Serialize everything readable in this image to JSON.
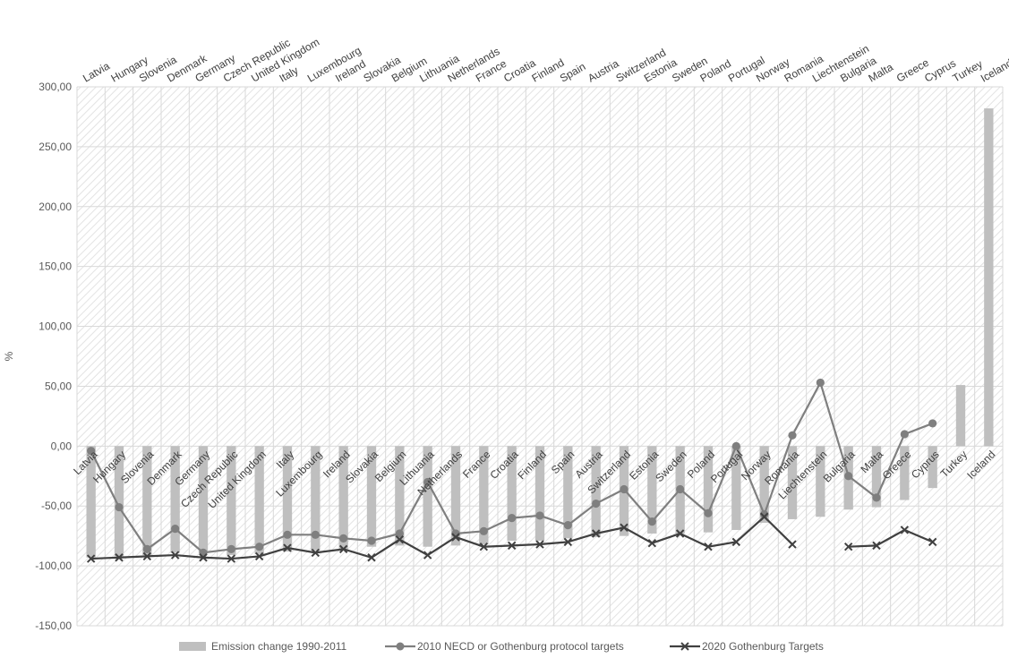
{
  "chart_data": {
    "type": "bar",
    "title": "",
    "xlabel": "",
    "ylabel": "%",
    "ylim": [
      -150,
      300
    ],
    "yticks": [
      300,
      250,
      200,
      150,
      100,
      50,
      0,
      -50,
      -100,
      -150
    ],
    "ytick_labels": [
      "300,00",
      "250,00",
      "200,00",
      "150,00",
      "100,00",
      "50,00",
      "0,00",
      "-50,00",
      "-100,00",
      "-150,00"
    ],
    "categories": [
      "Latvia",
      "Hungary",
      "Slovenia",
      "Denmark",
      "Germany",
      "Czech Republic",
      "United Kingdom",
      "Italy",
      "Luxembourg",
      "Ireland",
      "Slovakia",
      "Belgium",
      "Lithuania",
      "Netherlands",
      "France",
      "Croatia",
      "Finland",
      "Spain",
      "Austria",
      "Switzerland",
      "Estonia",
      "Sweden",
      "Poland",
      "Portugal",
      "Norway",
      "Romania",
      "Liechtenstein",
      "Bulgaria",
      "Malta",
      "Greece",
      "Cyprus",
      "Turkey",
      "Iceland"
    ],
    "grid": true,
    "legend_position": "bottom",
    "colors": {
      "bars": "#bfbfbf",
      "nec_line": "#7f7f7f",
      "goth_line": "#404040",
      "grid": "#d9d9d9",
      "hatch": "#e6e6e6"
    },
    "series": [
      {
        "name": "Emission change 1990-2011",
        "type": "bar",
        "values": [
          -93,
          -92,
          -91,
          -89,
          -89,
          -91,
          -90,
          -88,
          -87,
          -86,
          -84,
          -83,
          -84,
          -83,
          -82,
          -79,
          -79,
          -77,
          -76,
          -75,
          -73,
          -73,
          -72,
          -70,
          -64,
          -61,
          -59,
          -53,
          -51,
          -45,
          -35,
          51,
          282
        ]
      },
      {
        "name": "2010 NECD or Gothenburg protocol targets",
        "type": "line",
        "values": [
          -4,
          -51,
          -86,
          -69,
          -89,
          -86,
          -84,
          -74,
          -74,
          -77,
          -79,
          -73,
          -30,
          -73,
          -71,
          -60,
          -58,
          -66,
          -48,
          -36,
          -63,
          -36,
          -56,
          0,
          -57,
          9,
          53,
          -25,
          -43,
          10,
          19,
          null,
          null
        ]
      },
      {
        "name": "2020 Gothenburg Targets",
        "type": "line",
        "values": [
          -94,
          -93,
          -92,
          -91,
          -93,
          -94,
          -92,
          -85,
          -89,
          -86,
          -93,
          -78,
          -91,
          -76,
          -84,
          -83,
          -82,
          -80,
          -73,
          -68,
          -81,
          -73,
          -84,
          -80,
          -59,
          -82,
          null,
          -84,
          -83,
          -70,
          -80,
          null,
          null
        ]
      }
    ]
  }
}
